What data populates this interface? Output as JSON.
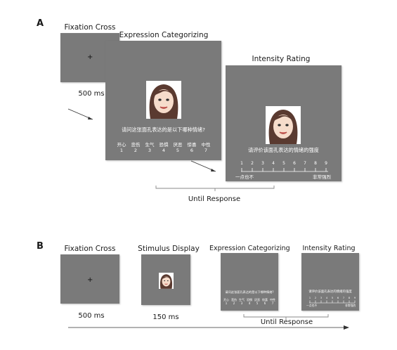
{
  "panels": {
    "A": {
      "letter": "A",
      "fixation": {
        "title": "Fixation Cross",
        "cross": "+",
        "duration": "500 ms"
      },
      "categorizing": {
        "title": "Expression Categorizing",
        "question": "请问这张面孔表达的是以下哪种情绪?",
        "options": [
          {
            "label": "开心",
            "num": "1"
          },
          {
            "label": "悲伤",
            "num": "2"
          },
          {
            "label": "生气",
            "num": "3"
          },
          {
            "label": "恐惧",
            "num": "4"
          },
          {
            "label": "厌恶",
            "num": "5"
          },
          {
            "label": "惊喜",
            "num": "6"
          },
          {
            "label": "中性",
            "num": "7"
          }
        ]
      },
      "rating": {
        "title": "Intensity Rating",
        "question": "请评价该面孔表达的情绪的强度",
        "scale": [
          "1",
          "2",
          "3",
          "4",
          "5",
          "6",
          "7",
          "8",
          "9"
        ],
        "low_label": "一点也不",
        "high_label": "非常强烈"
      },
      "until_response": "Until Response"
    },
    "B": {
      "letter": "B",
      "fixation": {
        "title": "Fixation Cross",
        "cross": "+",
        "duration": "500 ms"
      },
      "stimulus": {
        "title": "Stimulus Display",
        "duration": "150 ms"
      },
      "categorizing": {
        "title": "Expression Categorizing",
        "question": "请问这张面孔表达的是以下哪种情绪?",
        "options": [
          {
            "label": "开心",
            "num": "1"
          },
          {
            "label": "悲伤",
            "num": "2"
          },
          {
            "label": "生气",
            "num": "3"
          },
          {
            "label": "恐惧",
            "num": "4"
          },
          {
            "label": "厌恶",
            "num": "5"
          },
          {
            "label": "惊喜",
            "num": "6"
          },
          {
            "label": "中性",
            "num": "7"
          }
        ]
      },
      "rating": {
        "title": "Intensity Rating",
        "question": "请评价该面孔表达的情绪的强度",
        "scale": [
          "1",
          "2",
          "3",
          "4",
          "5",
          "6",
          "7",
          "8",
          "9"
        ],
        "low_label": "一点也不",
        "high_label": "非常强烈"
      },
      "until_response": "Until Response"
    }
  },
  "colors": {
    "screen": "#7a7a7a",
    "hair": "#5a3a30",
    "skin": "#f6dccb",
    "lips": "#b8504a"
  }
}
